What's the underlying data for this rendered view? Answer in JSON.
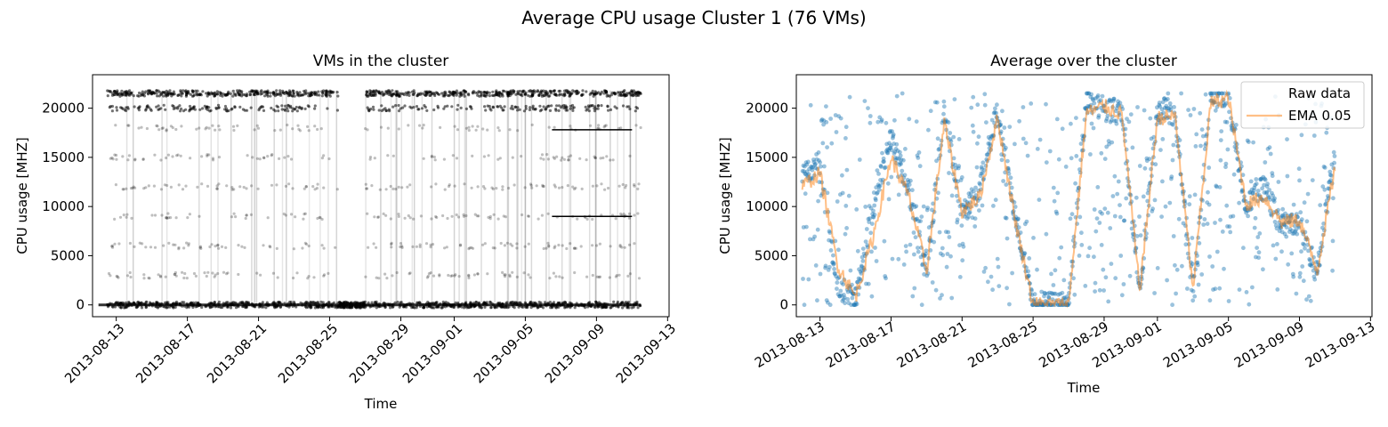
{
  "figure": {
    "suptitle": "Average CPU usage Cluster 1 (76 VMs)"
  },
  "chart_data": [
    {
      "type": "scatter",
      "title": "VMs in the cluster",
      "xlabel": "Time",
      "ylabel": "CPU usage [MHZ]",
      "x_type": "date",
      "xlim": [
        "2013-08-11T16:00",
        "2013-09-13T02:00"
      ],
      "data_x_range": [
        "2013-08-12T12:00",
        "2013-09-11T12:00"
      ],
      "ylim": [
        -1200,
        23400
      ],
      "xtick_labels": [
        "2013-08-13",
        "2013-08-17",
        "2013-08-21",
        "2013-08-25",
        "2013-08-29",
        "2013-09-01",
        "2013-09-05",
        "2013-09-09",
        "2013-09-13"
      ],
      "ytick_labels": [
        "0",
        "5000",
        "10000",
        "15000",
        "20000"
      ],
      "ytick_values": [
        0,
        5000,
        10000,
        15000,
        20000
      ],
      "color": "#000000",
      "description_levels": [
        0,
        3000,
        6000,
        9000,
        12000,
        15000,
        18000,
        20000,
        21500
      ],
      "series": [
        {
          "values_note": "per-VM CPU usage points, bands at the listed levels",
          "x": [
            "2013-08-12",
            "2013-08-16",
            "2013-08-20",
            "2013-08-24",
            "2013-08-28",
            "2013-09-01",
            "2013-09-05",
            "2013-09-09",
            "2013-09-11"
          ],
          "y": [
            21500,
            21500,
            21500,
            0,
            21500,
            21500,
            21500,
            21500,
            21500
          ]
        }
      ],
      "grid": false
    },
    {
      "type": "line",
      "title": "Average over the cluster",
      "xlabel": "Time",
      "ylabel": "CPU usage [MHZ]",
      "x_type": "date",
      "xlim": [
        "2013-08-11T16:00",
        "2013-09-13T02:00"
      ],
      "ylim": [
        -1200,
        23400
      ],
      "xtick_labels": [
        "2013-08-13",
        "2013-08-17",
        "2013-08-21",
        "2013-08-25",
        "2013-08-29",
        "2013-09-01",
        "2013-09-05",
        "2013-09-09",
        "2013-09-13"
      ],
      "ytick_labels": [
        "0",
        "5000",
        "10000",
        "15000",
        "20000"
      ],
      "ytick_values": [
        0,
        5000,
        10000,
        15000,
        20000
      ],
      "legend": {
        "placement": "top-right",
        "entries": [
          "Raw data",
          "EMA 0.05"
        ]
      },
      "colors": {
        "raw": "#1f77b4",
        "ema": "#ff7f0e"
      },
      "series": [
        {
          "name": "Raw data",
          "x": [
            "2013-08-12",
            "2013-08-13",
            "2013-08-14",
            "2013-08-15",
            "2013-08-16",
            "2013-08-17",
            "2013-08-18",
            "2013-08-19",
            "2013-08-20",
            "2013-08-21",
            "2013-08-22",
            "2013-08-23",
            "2013-08-24",
            "2013-08-25",
            "2013-08-26",
            "2013-08-27",
            "2013-08-28",
            "2013-08-29",
            "2013-08-30",
            "2013-08-31",
            "2013-09-01",
            "2013-09-02",
            "2013-09-03",
            "2013-09-04",
            "2013-09-05",
            "2013-09-06",
            "2013-09-07",
            "2013-09-08",
            "2013-09-09",
            "2013-09-10",
            "2013-09-11"
          ],
          "y": [
            14000,
            13500,
            2000,
            500,
            10000,
            17000,
            12000,
            3000,
            20000,
            9000,
            12000,
            20000,
            9000,
            0,
            0,
            0,
            20500,
            20000,
            19500,
            1000,
            20000,
            19500,
            1000,
            21000,
            21000,
            10000,
            12000,
            8000,
            8500,
            3000,
            16000
          ]
        },
        {
          "name": "EMA 0.05",
          "x": [
            "2013-08-12",
            "2013-08-13",
            "2013-08-14",
            "2013-08-15",
            "2013-08-16",
            "2013-08-17",
            "2013-08-18",
            "2013-08-19",
            "2013-08-20",
            "2013-08-21",
            "2013-08-22",
            "2013-08-23",
            "2013-08-24",
            "2013-08-25",
            "2013-08-26",
            "2013-08-27",
            "2013-08-28",
            "2013-08-29",
            "2013-08-30",
            "2013-08-31",
            "2013-09-01",
            "2013-09-02",
            "2013-09-03",
            "2013-09-04",
            "2013-09-05",
            "2013-09-06",
            "2013-09-07",
            "2013-09-08",
            "2013-09-09",
            "2013-09-10",
            "2013-09-11"
          ],
          "y": [
            12000,
            13400,
            4000,
            800,
            7000,
            15000,
            11000,
            3500,
            18500,
            9500,
            11000,
            19000,
            8500,
            100,
            0,
            0,
            19500,
            20200,
            19400,
            1500,
            19000,
            19200,
            1500,
            20500,
            21000,
            10200,
            11000,
            8400,
            8600,
            3500,
            14000
          ]
        }
      ],
      "grid": false
    }
  ]
}
